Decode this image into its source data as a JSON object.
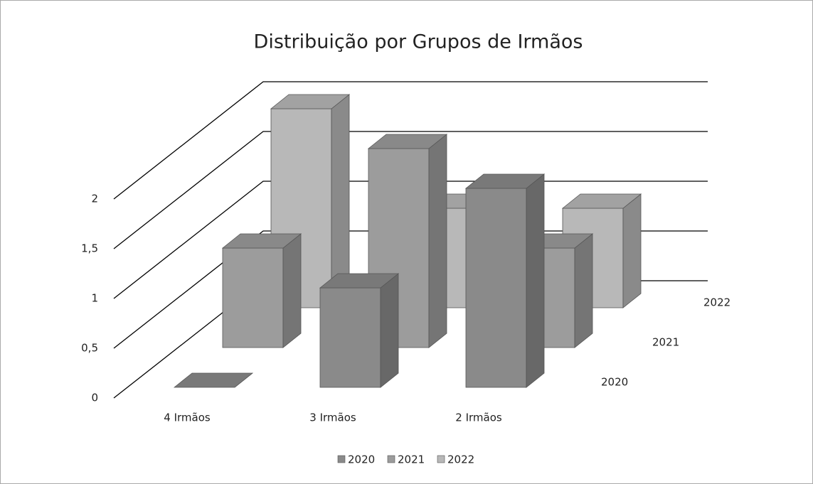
{
  "chart_data": {
    "type": "bar3d",
    "title": "Distribuição por Grupos de Irmãos",
    "categories": [
      "4 Irmãos",
      "3 Irmãos",
      "2 Irmãos"
    ],
    "series": [
      {
        "name": "2020",
        "color": "#8a8a8a",
        "values": [
          0,
          1,
          2
        ]
      },
      {
        "name": "2021",
        "color": "#9c9c9c",
        "values": [
          1,
          2,
          1
        ]
      },
      {
        "name": "2022",
        "color": "#b8b8b8",
        "values": [
          2,
          1,
          1
        ]
      }
    ],
    "ylim": [
      0,
      2
    ],
    "yticks": [
      0,
      {
        "value": 0.5,
        "label": "0,5"
      },
      1,
      {
        "value": 1.5,
        "label": "1,5"
      },
      2
    ],
    "grid": true,
    "legend": "bottom"
  }
}
